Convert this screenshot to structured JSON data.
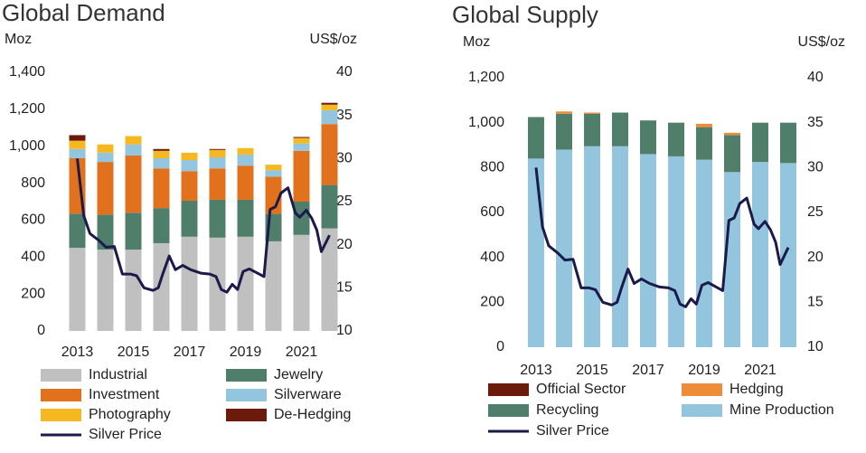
{
  "chart_data": [
    {
      "type": "bar",
      "stacked": true,
      "title": "Global Demand",
      "y_label": "Moz",
      "y2_label": "US$/oz",
      "categories": [
        "2013",
        null,
        "2015",
        null,
        "2017",
        null,
        "2019",
        null,
        "2021",
        null
      ],
      "series": [
        {
          "name": "Industrial",
          "color": "#c0c0c0",
          "values": [
            450,
            440,
            440,
            475,
            510,
            505,
            510,
            485,
            520,
            555
          ]
        },
        {
          "name": "Jewelry",
          "color": "#4f7f6b",
          "values": [
            185,
            190,
            200,
            190,
            195,
            205,
            200,
            150,
            180,
            235
          ]
        },
        {
          "name": "Investment",
          "color": "#e2711d",
          "values": [
            300,
            285,
            310,
            215,
            160,
            170,
            185,
            200,
            275,
            330
          ]
        },
        {
          "name": "Silverware",
          "color": "#93c6de",
          "values": [
            50,
            50,
            60,
            55,
            60,
            60,
            60,
            35,
            40,
            75
          ]
        },
        {
          "name": "Photography",
          "color": "#f5b820",
          "values": [
            45,
            45,
            45,
            40,
            40,
            40,
            35,
            30,
            30,
            30
          ]
        },
        {
          "name": "De-Hedging",
          "color": "#6b1a0c",
          "values": [
            30,
            0,
            0,
            10,
            0,
            5,
            0,
            0,
            5,
            10
          ]
        },
        {
          "name": "Silver Price",
          "color": "#1b1a4a",
          "type": "line",
          "axis": "y2",
          "x": [
            2013.0,
            2013.23,
            2013.45,
            2013.77,
            2014.03,
            2014.32,
            2014.61,
            2014.9,
            2015.12,
            2015.38,
            2015.7,
            2015.89,
            2016.05,
            2016.28,
            2016.5,
            2016.76,
            2017.05,
            2017.41,
            2017.73,
            2017.95,
            2018.14,
            2018.34,
            2018.53,
            2018.72,
            2018.92,
            2019.14,
            2019.43,
            2019.66,
            2019.88,
            2020.07,
            2020.27,
            2020.52,
            2020.78,
            2020.94,
            2021.17,
            2021.36,
            2021.55,
            2021.71,
            2022.0
          ],
          "values": [
            30.0,
            23.4,
            21.3,
            20.5,
            19.7,
            19.8,
            16.6,
            16.6,
            16.4,
            15.0,
            14.7,
            15.0,
            16.6,
            18.7,
            17.1,
            17.6,
            17.1,
            16.7,
            16.6,
            16.3,
            14.8,
            14.5,
            15.4,
            14.8,
            16.9,
            17.2,
            16.7,
            16.3,
            24.1,
            24.4,
            26.0,
            26.6,
            23.7,
            23.2,
            24.0,
            23.1,
            21.7,
            19.2,
            21.1
          ]
        }
      ],
      "ylim": [
        0,
        1400
      ],
      "yticks": [
        0,
        200,
        400,
        600,
        800,
        {
          "value": 1000,
          "label": "1,000"
        },
        {
          "value": 1200,
          "label": "1,200"
        },
        {
          "value": 1400,
          "label": "1,400"
        }
      ],
      "y2lim": [
        10,
        40
      ],
      "y2ticks": [
        10,
        15,
        20,
        25,
        30,
        35,
        40
      ],
      "grid": false
    },
    {
      "type": "bar",
      "stacked": true,
      "stack": "reverse",
      "title": "Global Supply",
      "y_label": "Moz",
      "y2_label": "US$/oz",
      "categories": [
        "2013",
        null,
        "2015",
        null,
        "2017",
        null,
        "2019",
        null,
        "2021",
        null
      ],
      "series": [
        {
          "name": "Official Sector",
          "color": "#6b1a0c",
          "values": [
            0,
            0,
            0,
            0,
            0,
            0,
            0,
            0,
            0,
            0
          ]
        },
        {
          "name": "Hedging",
          "color": "#ef8c3a",
          "values": [
            0,
            10,
            5,
            0,
            0,
            0,
            15,
            10,
            0,
            0
          ]
        },
        {
          "name": "Recycling",
          "color": "#4f7f6b",
          "values": [
            185,
            160,
            145,
            150,
            150,
            150,
            145,
            165,
            175,
            180
          ]
        },
        {
          "name": "Mine Production",
          "color": "#93c6de",
          "values": [
            840,
            880,
            895,
            895,
            860,
            850,
            835,
            780,
            825,
            820
          ]
        },
        {
          "name": "Silver Price",
          "color": "#1b1a4a",
          "type": "line",
          "axis": "y2",
          "x": [
            2013.0,
            2013.23,
            2013.45,
            2013.77,
            2014.03,
            2014.32,
            2014.61,
            2014.9,
            2015.12,
            2015.38,
            2015.7,
            2015.89,
            2016.05,
            2016.28,
            2016.5,
            2016.76,
            2017.05,
            2017.41,
            2017.73,
            2017.95,
            2018.14,
            2018.34,
            2018.53,
            2018.72,
            2018.92,
            2019.14,
            2019.43,
            2019.66,
            2019.88,
            2020.07,
            2020.27,
            2020.52,
            2020.78,
            2020.94,
            2021.17,
            2021.36,
            2021.55,
            2021.71,
            2022.0
          ],
          "values": [
            30.0,
            23.4,
            21.3,
            20.5,
            19.7,
            19.8,
            16.6,
            16.6,
            16.4,
            15.0,
            14.7,
            15.0,
            16.6,
            18.7,
            17.1,
            17.6,
            17.1,
            16.7,
            16.6,
            16.3,
            14.8,
            14.5,
            15.4,
            14.8,
            16.9,
            17.2,
            16.7,
            16.3,
            24.1,
            24.4,
            26.0,
            26.6,
            23.7,
            23.2,
            24.0,
            23.1,
            21.7,
            19.2,
            21.1
          ]
        }
      ],
      "ylim": [
        0,
        1200
      ],
      "yticks": [
        0,
        200,
        400,
        600,
        800,
        {
          "value": 1000,
          "label": "1,000"
        },
        {
          "value": 1200,
          "label": "1,200"
        }
      ],
      "y2lim": [
        10,
        40
      ],
      "y2ticks": [
        10,
        15,
        20,
        25,
        30,
        35,
        40
      ],
      "grid": false
    }
  ]
}
